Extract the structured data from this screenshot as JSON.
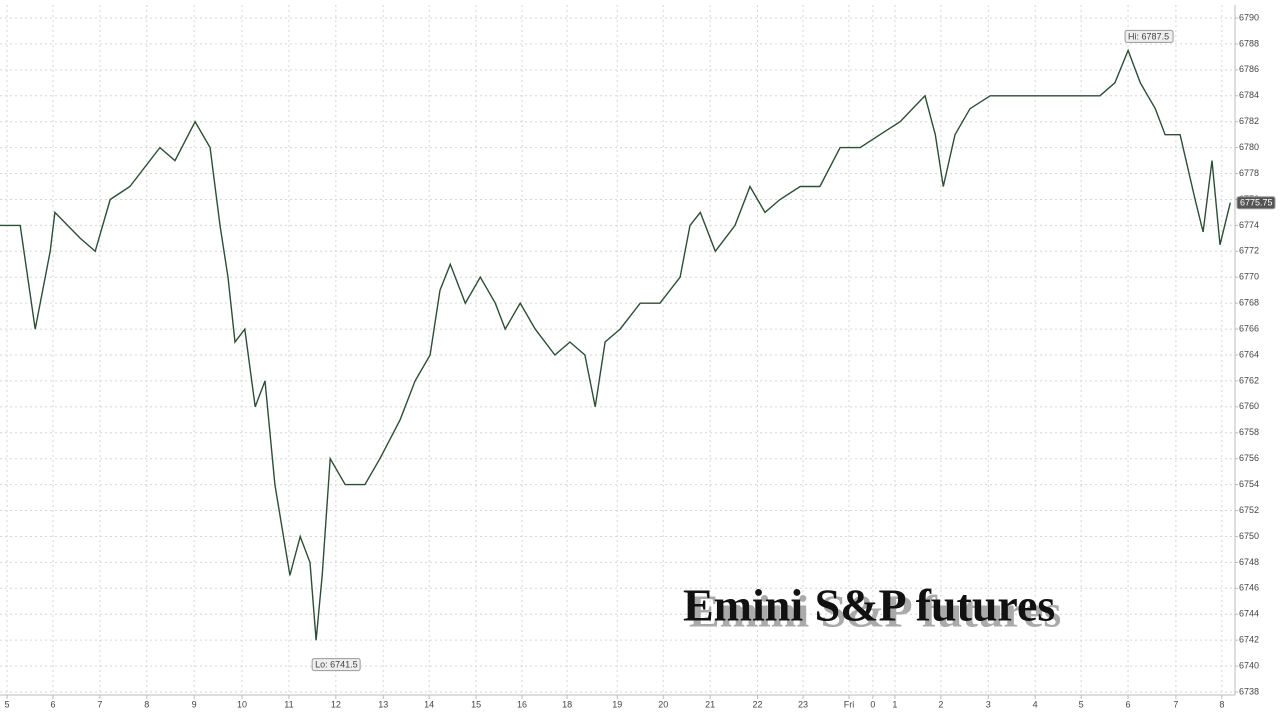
{
  "chart_data": {
    "type": "line",
    "title": "Emini S&P futures",
    "x": [
      -0.15,
      0.28,
      0.6,
      0.92,
      1.02,
      1.56,
      1.88,
      2.2,
      2.62,
      3.26,
      3.58,
      4.01,
      4.33,
      4.54,
      4.71,
      4.86,
      5.07,
      5.29,
      5.5,
      5.71,
      6.03,
      6.25,
      6.46,
      6.59,
      6.72,
      6.89,
      7.21,
      7.63,
      7.95,
      8.38,
      8.7,
      9.02,
      9.23,
      9.45,
      9.77,
      10.09,
      10.41,
      10.62,
      10.94,
      11.26,
      11.68,
      12.0,
      12.32,
      12.54,
      12.75,
      13.07,
      13.5,
      13.92,
      14.35,
      14.56,
      14.78,
      15.1,
      15.52,
      15.84,
      16.16,
      16.48,
      16.91,
      17.33,
      17.76,
      18.19,
      18.61,
      19.04,
      19.57,
      19.79,
      19.96,
      20.21,
      20.53,
      20.96,
      21.39,
      21.81,
      22.45,
      23.09,
      23.3,
      23.62,
      23.9,
      24.16,
      24.48,
      24.69,
      25.01,
      25.33,
      25.5,
      25.69,
      25.86,
      26.08
    ],
    "series": [
      {
        "name": "Emini S&P futures",
        "color": "#2c4f35",
        "values": [
          6774,
          6774,
          6766,
          6772,
          6775,
          6773,
          6772,
          6776,
          6777,
          6780,
          6779,
          6782,
          6780,
          6774,
          6770,
          6765,
          6766,
          6760,
          6762,
          6754,
          6747,
          6750,
          6748,
          6742,
          6747,
          6756,
          6754,
          6754,
          6756,
          6759,
          6762,
          6764,
          6769,
          6771,
          6768,
          6770,
          6768,
          6766,
          6768,
          6766,
          6764,
          6765,
          6764,
          6760,
          6765,
          6766,
          6768,
          6768,
          6770,
          6774,
          6775,
          6772,
          6774,
          6777,
          6775,
          6776,
          6777,
          6777,
          6780,
          6780,
          6781,
          6782,
          6784,
          6781,
          6777,
          6781,
          6783,
          6784,
          6784,
          6784,
          6784,
          6784,
          6784,
          6785,
          6787.5,
          6785,
          6783,
          6781,
          6781,
          6776,
          6773.5,
          6779,
          6772.5,
          6775.75
        ]
      }
    ],
    "xlim": [
      -0.15,
      26.18
    ],
    "xticks": [
      {
        "value": 0,
        "label": "5"
      },
      {
        "value": 0.98,
        "label": "6"
      },
      {
        "value": 1.98,
        "label": "7"
      },
      {
        "value": 2.98,
        "label": "8"
      },
      {
        "value": 3.99,
        "label": "9"
      },
      {
        "value": 5.01,
        "label": "10"
      },
      {
        "value": 6.01,
        "label": "11"
      },
      {
        "value": 7.01,
        "label": "12"
      },
      {
        "value": 8.02,
        "label": "13"
      },
      {
        "value": 9.0,
        "label": "14"
      },
      {
        "value": 10.0,
        "label": "15"
      },
      {
        "value": 10.98,
        "label": "16"
      },
      {
        "value": 11.94,
        "label": "18"
      },
      {
        "value": 13.01,
        "label": "19"
      },
      {
        "value": 13.99,
        "label": "20"
      },
      {
        "value": 14.99,
        "label": "21"
      },
      {
        "value": 16.0,
        "label": "22"
      },
      {
        "value": 16.97,
        "label": "23"
      },
      {
        "value": 17.95,
        "label": "Fri"
      },
      {
        "value": 18.46,
        "label": "0"
      },
      {
        "value": 18.93,
        "label": "1"
      },
      {
        "value": 19.91,
        "label": "2"
      },
      {
        "value": 20.92,
        "label": "3"
      },
      {
        "value": 21.92,
        "label": "4"
      },
      {
        "value": 22.9,
        "label": "5"
      },
      {
        "value": 23.9,
        "label": "6"
      },
      {
        "value": 24.92,
        "label": "7"
      },
      {
        "value": 25.9,
        "label": "8"
      }
    ],
    "ylim": [
      6738,
      6790
    ],
    "yticks": [
      6738,
      6740,
      6742,
      6744,
      6746,
      6748,
      6750,
      6752,
      6754,
      6756,
      6758,
      6760,
      6762,
      6764,
      6766,
      6768,
      6770,
      6772,
      6774,
      6776,
      6778,
      6780,
      6782,
      6784,
      6786,
      6788,
      6790
    ],
    "grid": true,
    "annotations": [
      {
        "text": "Hi: 6787.5",
        "x": 23.9,
        "y": 6787.5
      },
      {
        "text": "Lo: 6741.5",
        "x": 6.59,
        "y": 6741.5
      },
      {
        "text": "6775.75",
        "x": 26.08,
        "y": 6775.75
      }
    ]
  }
}
